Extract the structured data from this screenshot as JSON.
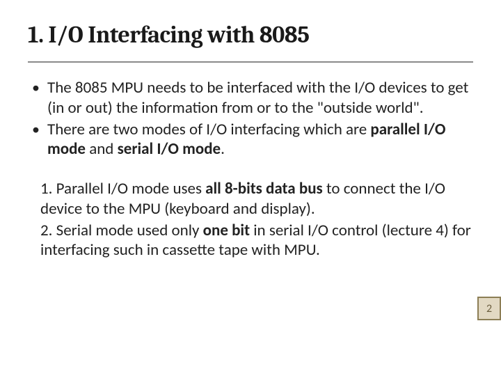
{
  "slide": {
    "title": "1. I/O Interfacing with 8085",
    "title_fontsize": 34,
    "title_color": "#1a1a1a",
    "underline_color": "#8a8a8a",
    "body_fontsize": 23,
    "body_color": "#222222",
    "background_color": "#ffffff",
    "bullets": [
      {
        "runs": [
          {
            "text": "The 8085 MPU needs to be interfaced with the I/O devices to get  (in or out) the information from or to the \"outside world\".",
            "bold": false
          }
        ]
      },
      {
        "runs": [
          {
            "text": "There are two modes of I/O interfacing which are ",
            "bold": false
          },
          {
            "text": "parallel I/O mode",
            "bold": true
          },
          {
            "text": " and ",
            "bold": false
          },
          {
            "text": "serial I/O mode",
            "bold": true
          },
          {
            "text": ".",
            "bold": false
          }
        ]
      }
    ],
    "numbered": [
      {
        "runs": [
          {
            "text": "1. Parallel I/O mode uses ",
            "bold": false
          },
          {
            "text": "all 8-bits data bus",
            "bold": true
          },
          {
            "text": " to connect the I/O device to the MPU (keyboard and display).",
            "bold": false
          }
        ]
      },
      {
        "runs": [
          {
            "text": "2. Serial mode used only ",
            "bold": false
          },
          {
            "text": "one bit",
            "bold": true
          },
          {
            "text": " in serial I/O control (lecture 4) for interfacing such in cassette tape with MPU.",
            "bold": false
          }
        ]
      }
    ],
    "page_number": "2",
    "page_badge": {
      "bg": "#e2d9c3",
      "border": "#8c7e55",
      "text_color": "#6b5f3f",
      "fontsize": 16
    }
  }
}
